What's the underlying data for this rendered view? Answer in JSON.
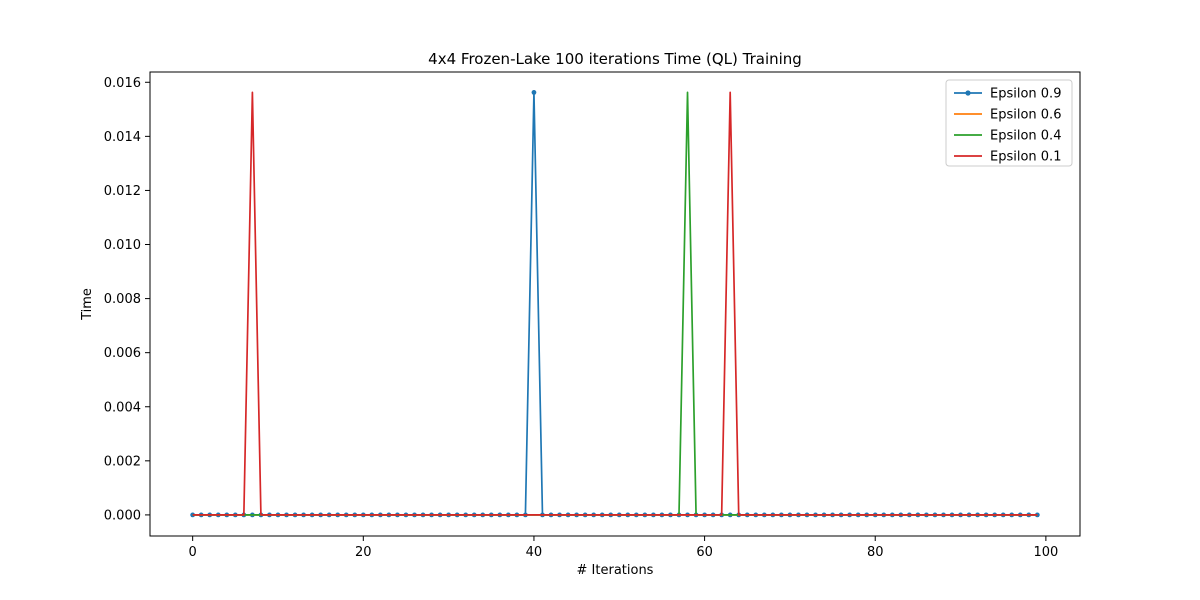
{
  "chart_data": {
    "type": "line",
    "title": "4x4 Frozen-Lake 100 iterations  Time (QL) Training",
    "xlabel": "# Iterations",
    "ylabel": "Time",
    "xlim": [
      -5,
      104
    ],
    "ylim": [
      -0.00078,
      0.01638
    ],
    "xticks": [
      0,
      20,
      40,
      60,
      80,
      100
    ],
    "xtick_labels": [
      "0",
      "20",
      "40",
      "60",
      "80",
      "100"
    ],
    "yticks": [
      0.0,
      0.002,
      0.004,
      0.006,
      0.008,
      0.01,
      0.012,
      0.014,
      0.016
    ],
    "ytick_labels": [
      "0.000",
      "0.002",
      "0.004",
      "0.006",
      "0.008",
      "0.010",
      "0.012",
      "0.014",
      "0.016"
    ],
    "grid": false,
    "legend_position": "top-right",
    "x_range": [
      0,
      99
    ],
    "series": [
      {
        "name": "Epsilon 0.9",
        "color": "#1f77b4",
        "marker": "circle",
        "baseline": 0,
        "spikes": [
          {
            "x": 40,
            "y": 0.015625
          }
        ]
      },
      {
        "name": "Epsilon 0.6",
        "color": "#ff7f0e",
        "marker": "none",
        "baseline": 0,
        "spikes": []
      },
      {
        "name": "Epsilon 0.4",
        "color": "#2ca02c",
        "marker": "none",
        "baseline": 0,
        "spikes": [
          {
            "x": 58,
            "y": 0.015625
          }
        ]
      },
      {
        "name": "Epsilon 0.1",
        "color": "#d62728",
        "marker": "none",
        "baseline": 0,
        "spikes": [
          {
            "x": 7,
            "y": 0.015625
          },
          {
            "x": 63,
            "y": 0.015625
          }
        ]
      }
    ]
  }
}
